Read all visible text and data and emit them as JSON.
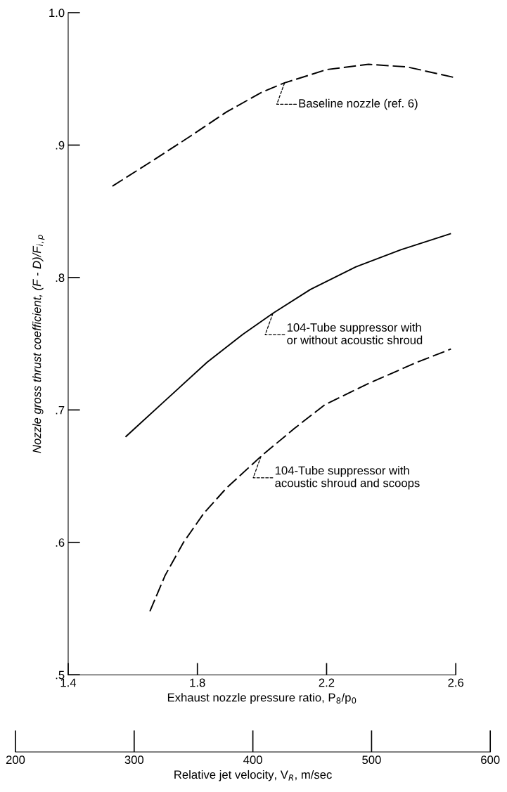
{
  "chart_data": {
    "type": "line",
    "xlabel": "Exhaust nozzle pressure ratio, P$_{8}$/p$_{0}$",
    "ylabel": "Nozzle gross thrust coefficient, (F - D)/F$_{i,p}$",
    "x2label": "Relative jet velocity, V$_{R}$, m/sec",
    "xlim": [
      1.4,
      2.6
    ],
    "xticks": [
      {
        "value": 1.4,
        "label": "1.4"
      },
      {
        "value": 1.8,
        "label": "1.8"
      },
      {
        "value": 2.2,
        "label": "2.2"
      },
      {
        "value": 2.6,
        "label": "2.6"
      }
    ],
    "ylim": [
      0.5,
      1.0
    ],
    "yticks": [
      {
        "value": 0.5,
        "label": ".5"
      },
      {
        "value": 0.6,
        "label": ".6"
      },
      {
        "value": 0.7,
        "label": ".7"
      },
      {
        "value": 0.8,
        "label": ".8"
      },
      {
        "value": 0.9,
        "label": ".9"
      },
      {
        "value": 1.0,
        "label": "1.0"
      }
    ],
    "x2lim": [
      200,
      600
    ],
    "x2ticks": [
      200,
      300,
      400,
      500,
      600
    ],
    "grid": false,
    "legend": false,
    "marker": "none",
    "series": [
      {
        "color": "#000000",
        "line_style": "dashed",
        "x": [
          1.537,
          1.66,
          1.78,
          1.89,
          2.0,
          2.07,
          2.2,
          2.33,
          2.45,
          2.596
        ],
        "values": [
          0.869,
          0.888,
          0.907,
          0.925,
          0.94,
          0.947,
          0.957,
          0.961,
          0.959,
          0.951
        ]
      },
      {
        "color": "#000000",
        "line_style": "solid",
        "x": [
          1.579,
          1.7,
          1.83,
          1.94,
          2.034,
          2.15,
          2.29,
          2.43,
          2.583
        ],
        "values": [
          0.68,
          0.707,
          0.736,
          0.757,
          0.773,
          0.791,
          0.808,
          0.821,
          0.833
        ]
      },
      {
        "color": "#000000",
        "line_style": "dashed",
        "x": [
          1.653,
          1.7,
          1.757,
          1.82,
          1.89,
          1.997,
          2.1,
          2.195,
          2.33,
          2.48,
          2.585
        ],
        "values": [
          0.548,
          0.575,
          0.6,
          0.622,
          0.641,
          0.665,
          0.686,
          0.704,
          0.72,
          0.736,
          0.746
        ]
      }
    ],
    "annotations": [
      {
        "text": "Baseline nozzle (ref. 6)",
        "x": 2.07,
        "y": 0.947
      },
      {
        "text": "104-Tube suppressor with\nor without acoustic shroud",
        "x": 2.034,
        "y": 0.773
      },
      {
        "text": "104-Tube suppressor with\nacoustic shroud and scoops",
        "x": 1.997,
        "y": 0.665
      }
    ]
  }
}
